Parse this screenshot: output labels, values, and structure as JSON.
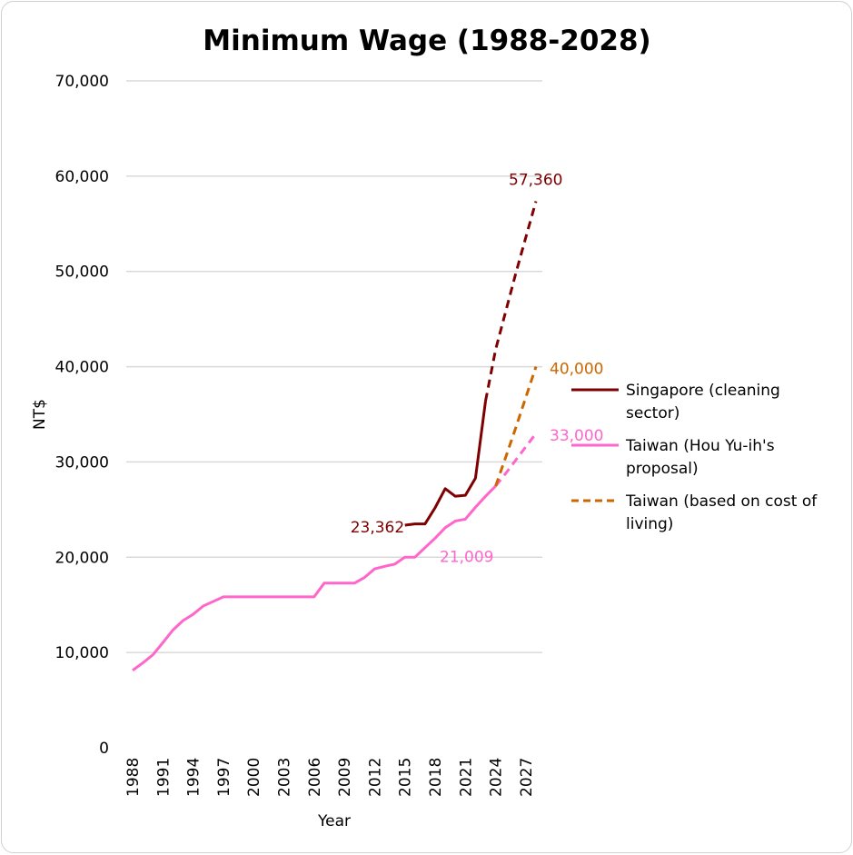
{
  "chart_data": {
    "type": "line",
    "title": "Minimum Wage (1988-2028)",
    "xlabel": "Year",
    "ylabel": "NT$",
    "xlim": [
      1988,
      2028
    ],
    "ylim": [
      0,
      70000
    ],
    "yticks": [
      0,
      10000,
      20000,
      30000,
      40000,
      50000,
      60000,
      70000
    ],
    "ytick_labels": [
      "0",
      "10,000",
      "20,000",
      "30,000",
      "40,000",
      "50,000",
      "60,000",
      "70,000"
    ],
    "xtick_labels": [
      "1988",
      "1991",
      "1994",
      "1997",
      "2000",
      "2003",
      "2006",
      "2009",
      "2012",
      "2015",
      "2018",
      "2021",
      "2024",
      "2027"
    ],
    "grid": true,
    "legend_position": "right",
    "series": [
      {
        "name": "Singapore (cleaning sector)",
        "legend_lines": [
          "Singapore (cleaning",
          "sector)"
        ],
        "color": "#7f0000",
        "dash": false,
        "x": [
          2015,
          2016,
          2017,
          2018,
          2019,
          2020,
          2021,
          2022,
          2023
        ],
        "y": [
          23362,
          23500,
          23500,
          25200,
          27200,
          26400,
          26500,
          28300,
          36400
        ]
      },
      {
        "name": "Singapore projection",
        "color": "#7f0000",
        "dash": true,
        "legend": false,
        "x": [
          2023,
          2024,
          2025,
          2026,
          2027,
          2028
        ],
        "y": [
          36400,
          41800,
          45800,
          49800,
          53600,
          57360
        ]
      },
      {
        "name": "Taiwan (Hou Yu-ih's proposal)",
        "legend_lines": [
          "Taiwan (Hou Yu-ih's",
          "proposal)"
        ],
        "color": "#ff66cc",
        "dash": false,
        "x": [
          1988,
          1989,
          1990,
          1991,
          1992,
          1993,
          1994,
          1995,
          1996,
          1997,
          1998,
          1999,
          2000,
          2001,
          2002,
          2003,
          2004,
          2005,
          2006,
          2007,
          2008,
          2009,
          2010,
          2011,
          2012,
          2013,
          2014,
          2015,
          2016,
          2017,
          2018,
          2019,
          2020,
          2021,
          2022,
          2023,
          2024
        ],
        "y": [
          8130,
          8900,
          9750,
          11040,
          12365,
          13350,
          14010,
          14880,
          15360,
          15840,
          15840,
          15840,
          15840,
          15840,
          15840,
          15840,
          15840,
          15840,
          15840,
          17280,
          17280,
          17280,
          17280,
          17880,
          18780,
          19047,
          19273,
          20008,
          20008,
          21009,
          22000,
          23100,
          23800,
          24000,
          25250,
          26400,
          27470
        ]
      },
      {
        "name": "Taiwan (Hou Yu-ih's proposal) projection",
        "color": "#ff66cc",
        "dash": true,
        "legend": false,
        "x": [
          2024,
          2025,
          2026,
          2027,
          2028
        ],
        "y": [
          27470,
          28800,
          30200,
          31600,
          33000
        ]
      },
      {
        "name": "Taiwan (based on cost of living)",
        "legend_lines": [
          "Taiwan (based on cost of",
          "living)"
        ],
        "color": "#cc6600",
        "dash": true,
        "x": [
          2024,
          2025,
          2026,
          2027,
          2028
        ],
        "y": [
          27470,
          30500,
          33600,
          36800,
          40000
        ]
      }
    ],
    "annotations": [
      {
        "text": "57,360",
        "x": 2028,
        "y": 57360,
        "color": "#7f0000"
      },
      {
        "text": "40,000",
        "x": 2028,
        "y": 40000,
        "color": "#cc6600"
      },
      {
        "text": "33,000",
        "x": 2028,
        "y": 33000,
        "color": "#ff66cc"
      },
      {
        "text": "23,362",
        "x": 2015,
        "y": 23362,
        "color": "#7f0000"
      },
      {
        "text": "21,009",
        "x": 2017,
        "y": 21009,
        "color": "#ff66cc"
      }
    ]
  }
}
